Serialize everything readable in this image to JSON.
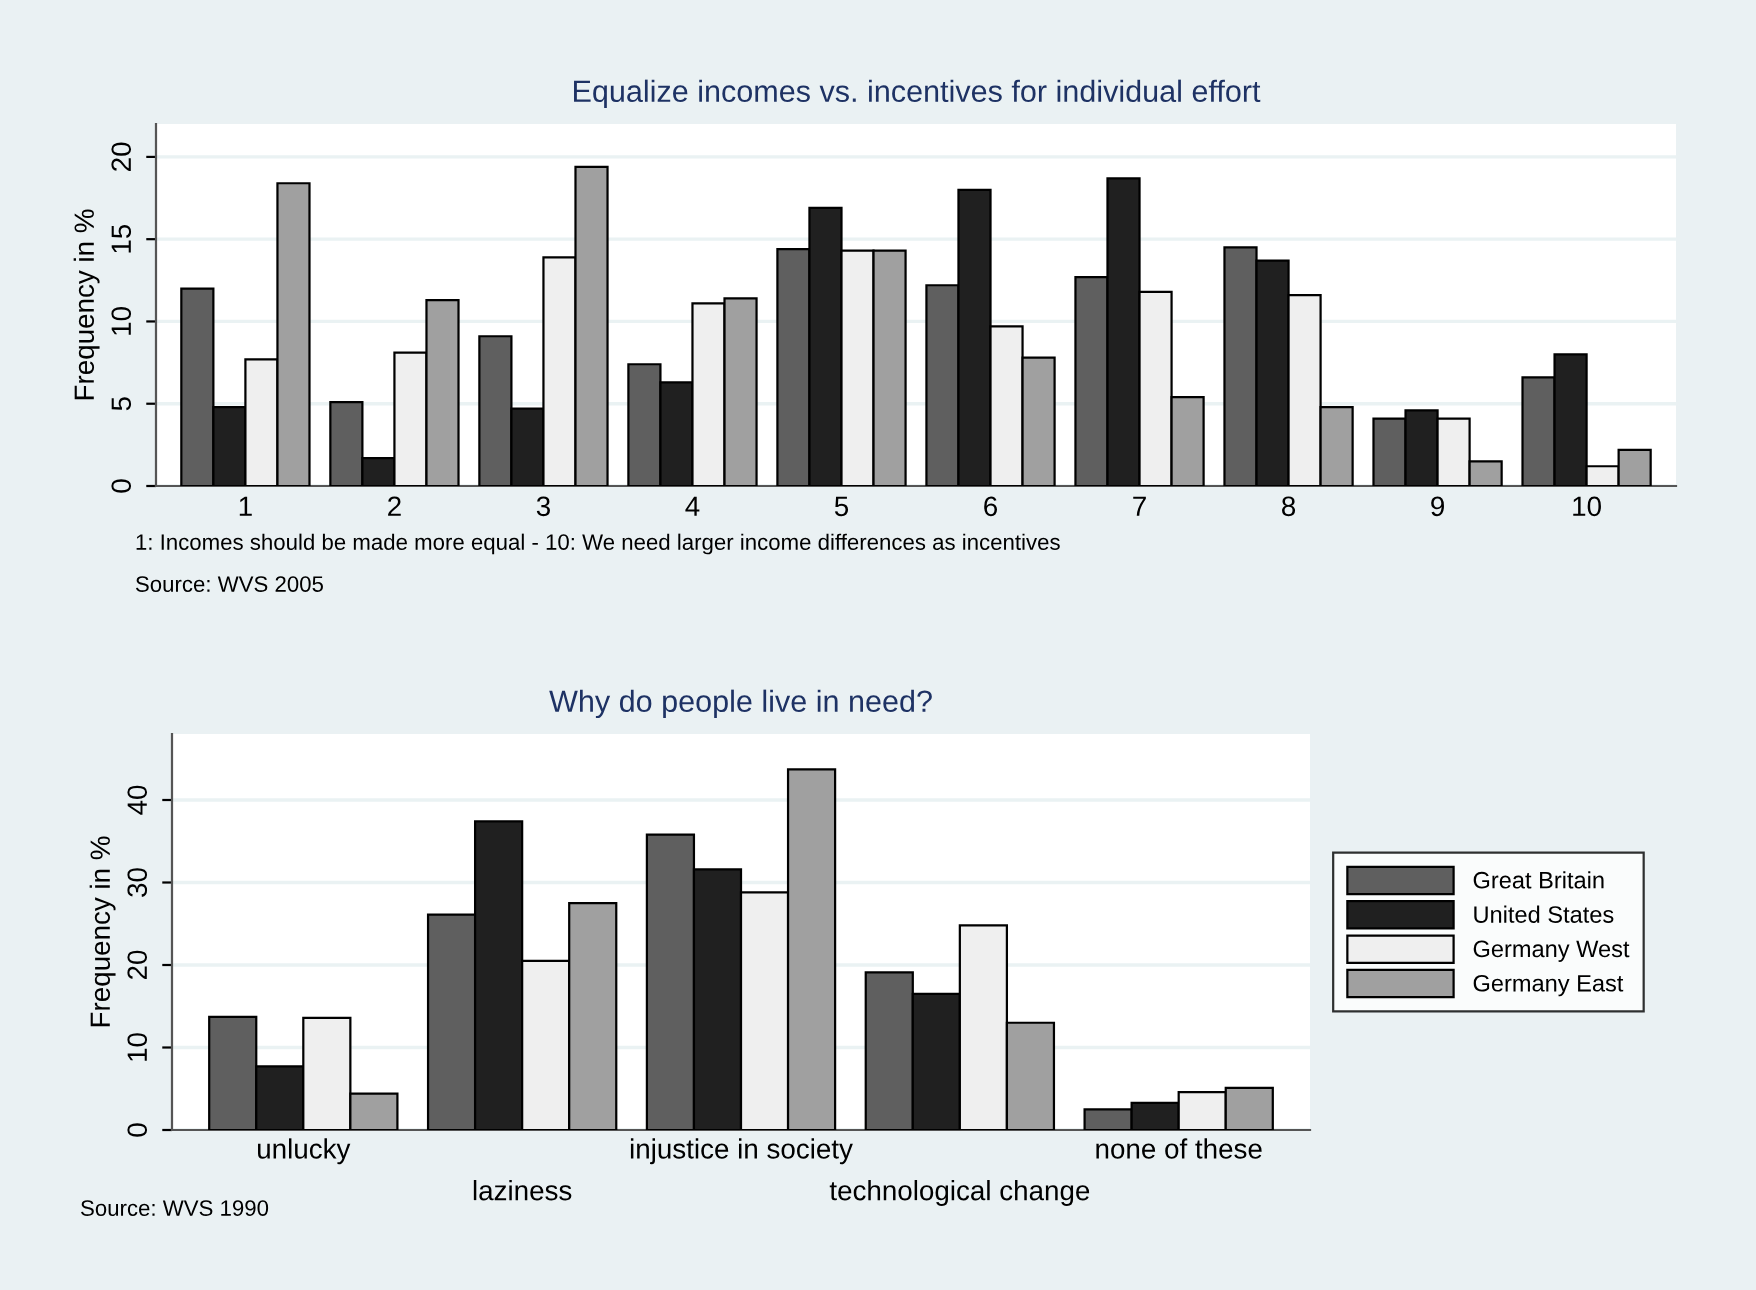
{
  "chart_data": [
    {
      "type": "bar",
      "title": "Equalize incomes vs. incentives for individual effort",
      "ylabel": "Frequency in %",
      "categories": [
        "1",
        "2",
        "3",
        "4",
        "5",
        "6",
        "7",
        "8",
        "9",
        "10"
      ],
      "series": [
        {
          "color": "#5f5f5f",
          "values": [
            12.0,
            5.1,
            9.1,
            7.4,
            14.4,
            12.2,
            12.7,
            14.5,
            4.1,
            6.6
          ]
        },
        {
          "color": "#202020",
          "values": [
            4.8,
            1.7,
            4.7,
            6.3,
            16.9,
            18.0,
            18.7,
            13.7,
            4.6,
            8.0
          ]
        },
        {
          "color": "#efefef",
          "values": [
            7.7,
            8.1,
            13.9,
            11.1,
            14.3,
            9.7,
            11.8,
            11.6,
            4.1,
            1.2
          ]
        },
        {
          "color": "#a0a0a0",
          "values": [
            18.4,
            11.3,
            19.4,
            11.4,
            14.3,
            7.8,
            5.4,
            4.8,
            1.5,
            2.2
          ]
        }
      ],
      "ylim": [
        0,
        22
      ],
      "yticks": [
        0,
        5,
        10,
        15,
        20
      ],
      "grid": "y",
      "legend": false,
      "annotations": [
        "1: Incomes should be made more equal - 10: We need larger income differences as incentives",
        "Source: WVS 2005"
      ]
    },
    {
      "type": "bar",
      "title": "Why do people live in need?",
      "ylabel": "Frequency in %",
      "categories": [
        "unlucky",
        "laziness",
        "injustice in society",
        "technological change",
        "none of these"
      ],
      "series": [
        {
          "name": "Great Britain",
          "color": "#5f5f5f",
          "values": [
            13.7,
            26.1,
            35.8,
            19.1,
            2.5
          ]
        },
        {
          "name": "United States",
          "color": "#202020",
          "values": [
            7.7,
            37.4,
            31.6,
            16.5,
            3.3
          ]
        },
        {
          "name": "Germany West",
          "color": "#efefef",
          "values": [
            13.6,
            20.5,
            28.8,
            24.8,
            4.6
          ]
        },
        {
          "name": "Germany East",
          "color": "#a0a0a0",
          "values": [
            4.4,
            27.5,
            43.7,
            13.0,
            5.1
          ]
        }
      ],
      "ylim": [
        0,
        48
      ],
      "yticks": [
        0,
        10,
        20,
        30,
        40
      ],
      "grid": "y",
      "legend": "right",
      "annotations": [
        "Source: WVS 1990"
      ]
    }
  ]
}
